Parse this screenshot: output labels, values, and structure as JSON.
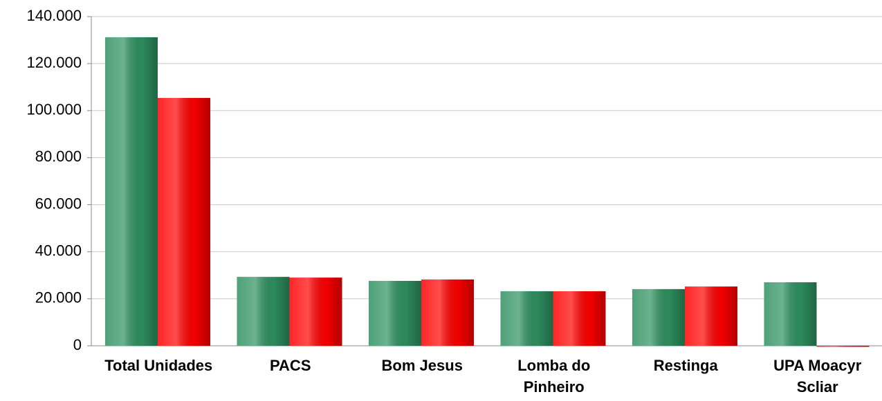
{
  "chart_data": {
    "type": "bar",
    "categories": [
      "Total Unidades",
      "PACS",
      "Bom Jesus",
      "Lomba do Pinheiro",
      "Restinga",
      "UPA Moacyr Scliar"
    ],
    "series": [
      {
        "color": "#2e9160",
        "values": [
          131200,
          29300,
          27600,
          23200,
          24100,
          27000
        ]
      },
      {
        "color": "#ff0000",
        "values": [
          105400,
          29000,
          28200,
          23200,
          25200,
          0
        ]
      }
    ],
    "ylim": [
      0,
      140000
    ],
    "yticks": [
      0,
      {
        "value": 20000,
        "label": "20.000"
      },
      {
        "value": 40000,
        "label": "40.000"
      },
      {
        "value": 60000,
        "label": "60.000"
      },
      {
        "value": 80000,
        "label": "80.000"
      },
      {
        "value": 100000,
        "label": "100.000"
      },
      {
        "value": 120000,
        "label": "120.000"
      },
      {
        "value": 140000,
        "label": "140.000"
      }
    ],
    "grid": true
  }
}
